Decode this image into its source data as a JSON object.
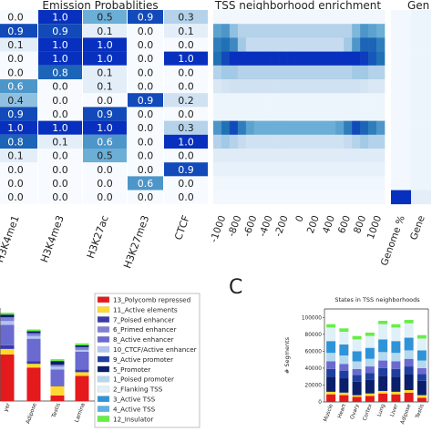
{
  "titles": {
    "emission": "Emission Probablities",
    "tss": "TSS neighborhood enrichment",
    "genome_cut": "Gen",
    "panel_c": "C",
    "tss_states": "States in TSS neighborhoods"
  },
  "chart_data": [
    {
      "type": "heatmap",
      "title": "Emission Probablities",
      "columns": [
        "H3K4me1",
        "H3K4me3",
        "H3K27ac",
        "H3K27me3",
        "CTCF"
      ],
      "rows": [
        [
          0.0,
          1.0,
          0.5,
          0.9,
          0.3
        ],
        [
          0.9,
          0.9,
          0.1,
          0.0,
          0.1
        ],
        [
          0.1,
          1.0,
          1.0,
          0.0,
          0.0
        ],
        [
          0.0,
          1.0,
          1.0,
          0.0,
          1.0
        ],
        [
          0.0,
          0.8,
          0.1,
          0.0,
          0.0
        ],
        [
          0.6,
          0.0,
          0.1,
          0.0,
          0.0
        ],
        [
          0.4,
          0.0,
          0.0,
          0.9,
          0.2
        ],
        [
          0.9,
          0.0,
          0.9,
          0.0,
          0.0
        ],
        [
          1.0,
          1.0,
          1.0,
          0.0,
          0.3
        ],
        [
          0.8,
          0.1,
          0.6,
          0.0,
          1.0
        ],
        [
          0.1,
          0.0,
          0.5,
          0.0,
          0.0
        ],
        [
          0.0,
          0.0,
          0.0,
          0.0,
          0.9
        ],
        [
          0.0,
          0.0,
          0.0,
          0.6,
          0.0
        ],
        [
          0.0,
          0.0,
          0.0,
          0.0,
          0.0
        ]
      ]
    },
    {
      "type": "heatmap",
      "title": "TSS neighborhood enrichment",
      "x_ticks": [
        "-1000",
        "-800",
        "-600",
        "-400",
        "-200",
        "0",
        "200",
        "400",
        "600",
        "800",
        "1000"
      ],
      "rows": [
        [
          0.03,
          0.03,
          0.03,
          0.03,
          0.03,
          0.03,
          0.03,
          0.03,
          0.03,
          0.03,
          0.03,
          0.03,
          0.03,
          0.03,
          0.03,
          0.03,
          0.03,
          0.03,
          0.03,
          0.03,
          0.03
        ],
        [
          0.55,
          0.6,
          0.4,
          0.3,
          0.3,
          0.3,
          0.3,
          0.3,
          0.3,
          0.3,
          0.3,
          0.3,
          0.3,
          0.3,
          0.3,
          0.3,
          0.3,
          0.45,
          0.6,
          0.55,
          0.5
        ],
        [
          0.7,
          0.75,
          0.65,
          0.35,
          0.25,
          0.25,
          0.25,
          0.25,
          0.25,
          0.25,
          0.25,
          0.25,
          0.25,
          0.25,
          0.25,
          0.25,
          0.35,
          0.6,
          0.8,
          0.8,
          0.7
        ],
        [
          0.75,
          0.9,
          1.0,
          1.0,
          1.0,
          1.0,
          1.0,
          1.0,
          1.0,
          1.0,
          1.0,
          1.0,
          1.0,
          1.0,
          1.0,
          1.0,
          1.0,
          1.0,
          0.95,
          0.85,
          0.75
        ],
        [
          0.3,
          0.35,
          0.35,
          0.3,
          0.3,
          0.3,
          0.3,
          0.3,
          0.3,
          0.3,
          0.3,
          0.3,
          0.3,
          0.3,
          0.3,
          0.3,
          0.3,
          0.35,
          0.35,
          0.3,
          0.3
        ],
        [
          0.15,
          0.18,
          0.2,
          0.2,
          0.2,
          0.2,
          0.2,
          0.2,
          0.2,
          0.2,
          0.2,
          0.2,
          0.2,
          0.2,
          0.2,
          0.2,
          0.2,
          0.2,
          0.18,
          0.15,
          0.15
        ],
        [
          0.05,
          0.05,
          0.05,
          0.05,
          0.05,
          0.05,
          0.05,
          0.05,
          0.05,
          0.05,
          0.05,
          0.05,
          0.05,
          0.05,
          0.05,
          0.05,
          0.05,
          0.05,
          0.05,
          0.05,
          0.05
        ],
        [
          0.05,
          0.05,
          0.05,
          0.05,
          0.05,
          0.05,
          0.05,
          0.05,
          0.05,
          0.05,
          0.05,
          0.05,
          0.05,
          0.05,
          0.05,
          0.05,
          0.05,
          0.05,
          0.05,
          0.05,
          0.05
        ],
        [
          0.6,
          0.75,
          0.9,
          0.7,
          0.55,
          0.5,
          0.5,
          0.5,
          0.5,
          0.5,
          0.5,
          0.5,
          0.5,
          0.5,
          0.5,
          0.55,
          0.7,
          0.9,
          0.8,
          0.7,
          0.6
        ],
        [
          0.3,
          0.35,
          0.3,
          0.25,
          0.2,
          0.2,
          0.2,
          0.2,
          0.2,
          0.2,
          0.2,
          0.2,
          0.2,
          0.2,
          0.2,
          0.2,
          0.25,
          0.3,
          0.35,
          0.3,
          0.3
        ],
        [
          0.12,
          0.12,
          0.12,
          0.12,
          0.12,
          0.12,
          0.12,
          0.12,
          0.12,
          0.12,
          0.12,
          0.12,
          0.12,
          0.12,
          0.12,
          0.12,
          0.12,
          0.12,
          0.12,
          0.12,
          0.12
        ],
        [
          0.08,
          0.08,
          0.08,
          0.08,
          0.08,
          0.08,
          0.08,
          0.08,
          0.08,
          0.08,
          0.08,
          0.08,
          0.08,
          0.08,
          0.08,
          0.08,
          0.08,
          0.08,
          0.08,
          0.08,
          0.08
        ],
        [
          0.04,
          0.04,
          0.04,
          0.04,
          0.04,
          0.04,
          0.04,
          0.04,
          0.04,
          0.04,
          0.04,
          0.04,
          0.04,
          0.04,
          0.04,
          0.04,
          0.04,
          0.04,
          0.04,
          0.04,
          0.04
        ],
        [
          0.02,
          0.02,
          0.02,
          0.02,
          0.02,
          0.02,
          0.02,
          0.02,
          0.02,
          0.02,
          0.02,
          0.02,
          0.02,
          0.02,
          0.02,
          0.02,
          0.02,
          0.02,
          0.02,
          0.02,
          0.02
        ]
      ]
    },
    {
      "type": "heatmap",
      "title": "Gen",
      "columns": [
        "Genome %",
        "Gene"
      ],
      "rows": [
        [
          0.02,
          0.05
        ],
        [
          0.02,
          0.05
        ],
        [
          0.02,
          0.05
        ],
        [
          0.02,
          0.05
        ],
        [
          0.02,
          0.05
        ],
        [
          0.02,
          0.05
        ],
        [
          0.02,
          0.05
        ],
        [
          0.02,
          0.05
        ],
        [
          0.02,
          0.05
        ],
        [
          0.02,
          0.05
        ],
        [
          0.02,
          0.05
        ],
        [
          0.02,
          0.05
        ],
        [
          0.02,
          0.05
        ],
        [
          1.0,
          0.1
        ]
      ]
    },
    {
      "type": "bar",
      "stacked": true,
      "categories": [
        "yer",
        "Adipose",
        "Testis",
        "Lamina"
      ],
      "series": [
        {
          "name": "13_Polycomb repressed",
          "color": "#e41a1c",
          "values": [
            50,
            36,
            6,
            27
          ]
        },
        {
          "name": "11_Active elements",
          "color": "#ffd92f",
          "values": [
            6,
            4,
            10,
            4
          ]
        },
        {
          "name": "7_Poised enhancer",
          "color": "#3a3aa8",
          "values": [
            4,
            3,
            1,
            3
          ]
        },
        {
          "name": "8_Active enhancer",
          "color": "#6a6ad0",
          "values": [
            22,
            24,
            17,
            19
          ]
        },
        {
          "name": "10_CTCF/Active enhancer",
          "color": "#b0c4ee",
          "values": [
            4,
            3,
            3,
            2
          ]
        },
        {
          "name": "6_Primed enhancer",
          "color": "#7f7fd8",
          "values": [
            4,
            3,
            2,
            3
          ]
        },
        {
          "name": "4_Active TSS",
          "color": "#0a1f6b",
          "values": [
            3,
            2,
            4,
            2
          ]
        },
        {
          "name": "12_Insulator",
          "color": "#66ee44",
          "values": [
            2,
            2,
            2,
            2
          ]
        }
      ],
      "ylim": [
        0,
        100
      ]
    },
    {
      "type": "bar",
      "stacked": true,
      "title": "States in TSS neighborhoods",
      "ylabel": "# Segments",
      "y_ticks": [
        "0",
        "20000",
        "40000",
        "60000",
        "80000",
        "100000"
      ],
      "ylim": [
        0,
        110000
      ],
      "categories": [
        "Muscle",
        "Heart",
        "Ovary",
        "Cortex",
        "Lung",
        "Liver",
        "Adipose",
        "Testis"
      ],
      "series": [
        {
          "name": "13_Polycomb repressed",
          "color": "#e41a1c",
          "values": [
            9000,
            8000,
            6000,
            7000,
            10000,
            9000,
            11000,
            5000
          ]
        },
        {
          "name": "11_Active elements",
          "color": "#ffd92f",
          "values": [
            3000,
            3000,
            2000,
            3000,
            3000,
            3000,
            3000,
            3000
          ]
        },
        {
          "name": "5_Promoter",
          "color": "#0a1f6b",
          "values": [
            18000,
            17000,
            16000,
            16000,
            18000,
            18000,
            19000,
            17000
          ]
        },
        {
          "name": "9_Active promoter",
          "color": "#1f3fa0",
          "values": [
            9000,
            9000,
            8000,
            8000,
            9000,
            9000,
            9000,
            8000
          ]
        },
        {
          "name": "8_Active enhancer",
          "color": "#6a6ad0",
          "values": [
            9000,
            8000,
            7000,
            8000,
            9000,
            9000,
            9000,
            7000
          ]
        },
        {
          "name": "1_Poised promoter",
          "color": "#b4d8ee",
          "values": [
            10000,
            10000,
            9000,
            9000,
            10000,
            10000,
            10000,
            9000
          ]
        },
        {
          "name": "3_Active TSS",
          "color": "#2f93d8",
          "values": [
            14000,
            13000,
            12000,
            13000,
            15000,
            14000,
            15000,
            12000
          ]
        },
        {
          "name": "2_Flanking TSS",
          "color": "#dff0f8",
          "values": [
            16000,
            15000,
            14000,
            14000,
            18000,
            16000,
            17000,
            14000
          ]
        },
        {
          "name": "12_Insulator",
          "color": "#66ee44",
          "values": [
            4000,
            4000,
            4000,
            4000,
            4000,
            4000,
            4000,
            4000
          ]
        }
      ]
    }
  ],
  "legend": [
    {
      "label": "13_Polycomb repressed",
      "color": "#e41a1c"
    },
    {
      "label": "11_Active elements",
      "color": "#ffd92f"
    },
    {
      "label": "7_Poised enhancer",
      "color": "#3a3aa8"
    },
    {
      "label": "6_Primed enhancer",
      "color": "#7f7fd8"
    },
    {
      "label": "8_Active enhancer",
      "color": "#6a6ad0"
    },
    {
      "label": "10_CTCF/Active enhancer",
      "color": "#b0c4ee"
    },
    {
      "label": "9_Active promoter",
      "color": "#1f3fa0"
    },
    {
      "label": "5_Promoter",
      "color": "#0a1f6b"
    },
    {
      "label": "1_Poised promoter",
      "color": "#b4d8ee"
    },
    {
      "label": "2_Flanking TSS",
      "color": "#dff0f8"
    },
    {
      "label": "3_Active TSS",
      "color": "#2f93d8"
    },
    {
      "label": "4_Active TSS",
      "color": "#5cb0e4"
    },
    {
      "label": "12_Insulator",
      "color": "#66ee44"
    }
  ]
}
